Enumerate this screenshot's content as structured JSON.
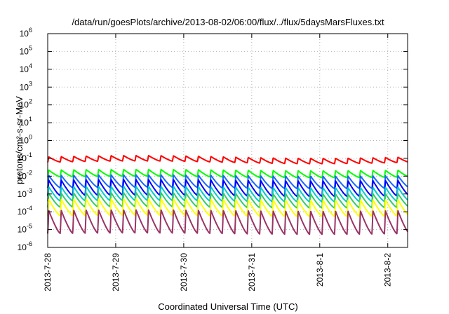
{
  "chart_data": {
    "type": "line",
    "title": "/data/run/goesPlots/archive/2013-08-02/06:00/flux/../flux/5daysMarsFluxes.txt",
    "xlabel": "Coordinated Universal Time (UTC)",
    "ylabel": "protons/cm²-s-sr-MeV",
    "yscale": "log",
    "ylim": [
      1e-06,
      1000000.0
    ],
    "xlim": [
      "2013-07-28T00:00",
      "2013-08-02T07:00"
    ],
    "grid": true,
    "y_ticks": [
      {
        "value": 1000000.0,
        "base": "10",
        "exp": "6"
      },
      {
        "value": 100000.0,
        "base": "10",
        "exp": "5"
      },
      {
        "value": 10000.0,
        "base": "10",
        "exp": "4"
      },
      {
        "value": 1000.0,
        "base": "10",
        "exp": "3"
      },
      {
        "value": 100.0,
        "base": "10",
        "exp": "2"
      },
      {
        "value": 10.0,
        "base": "10",
        "exp": "1"
      },
      {
        "value": 1.0,
        "base": "10",
        "exp": "0"
      },
      {
        "value": 0.1,
        "base": "10",
        "exp": "-1"
      },
      {
        "value": 0.01,
        "base": "10",
        "exp": "-2"
      },
      {
        "value": 0.001,
        "base": "10",
        "exp": "-3"
      },
      {
        "value": 0.0001,
        "base": "10",
        "exp": "-4"
      },
      {
        "value": 1e-05,
        "base": "10",
        "exp": "-5"
      },
      {
        "value": 1e-06,
        "base": "10",
        "exp": "-6"
      }
    ],
    "x_ticks": [
      {
        "date": "2013-07-28T00:00",
        "label": "2013-7-28"
      },
      {
        "date": "2013-07-29T00:00",
        "label": "2013-7-29"
      },
      {
        "date": "2013-07-30T00:00",
        "label": "2013-7-30"
      },
      {
        "date": "2013-07-31T00:00",
        "label": "2013-7-31"
      },
      {
        "date": "2013-08-01T00:00",
        "label": "2013-8-1"
      },
      {
        "date": "2013-08-02T00:00",
        "label": "2013-8-2"
      }
    ],
    "series": [
      {
        "color": "#ff0000",
        "high": 0.12,
        "low": 0.06,
        "period_hours": 4.4
      },
      {
        "color": "#00ff00",
        "high": 0.022,
        "low": 0.009,
        "period_hours": 4.4
      },
      {
        "color": "#1a66ff",
        "high": 0.011,
        "low": 0.0022,
        "period_hours": 4.4
      },
      {
        "color": "#0000ff",
        "high": 0.006,
        "low": 0.0008,
        "period_hours": 4.4
      },
      {
        "color": "#00cccc",
        "high": 0.0025,
        "low": 0.0004,
        "period_hours": 4.4
      },
      {
        "color": "#33cc66",
        "high": 0.0011,
        "low": 0.00018,
        "period_hours": 4.4
      },
      {
        "color": "#ffff00",
        "high": 0.0005,
        "low": 6e-05,
        "period_hours": 4.4
      },
      {
        "color": "#993366",
        "high": 0.00012,
        "low": 6e-06,
        "period_hours": 4.4
      }
    ]
  }
}
